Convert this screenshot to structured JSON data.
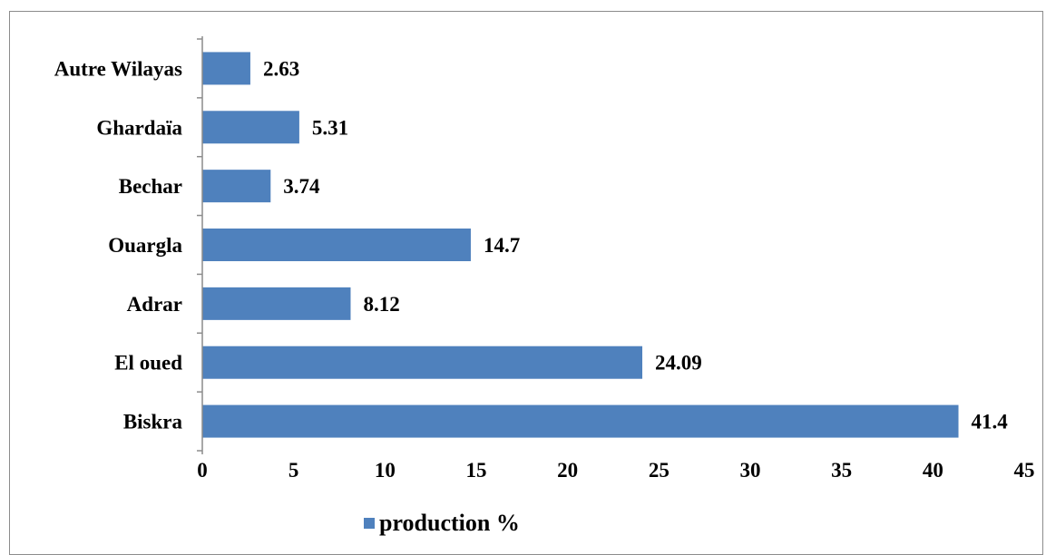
{
  "chart_data": {
    "type": "bar",
    "orientation": "horizontal",
    "categories": [
      "Autre Wilayas",
      "Ghardaïa",
      "Bechar",
      "Ouargla",
      "Adrar",
      "El oued",
      "Biskra"
    ],
    "series": [
      {
        "name": "production %",
        "values": [
          2.63,
          5.31,
          3.74,
          14.7,
          8.12,
          24.09,
          41.4
        ],
        "color": "#4f81bd"
      }
    ],
    "data_labels": [
      "2.63",
      "5.31",
      "3.74",
      "14.7",
      "8.12",
      "24.09",
      "41.4"
    ],
    "x_ticks": [
      "0",
      "5",
      "10",
      "15",
      "20",
      "25",
      "30",
      "35",
      "40",
      "45"
    ],
    "xlim": [
      0,
      45
    ],
    "grid": false,
    "legend_position": "bottom"
  }
}
